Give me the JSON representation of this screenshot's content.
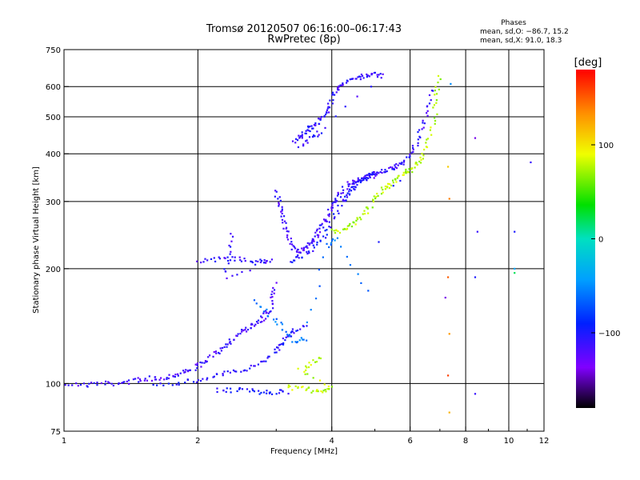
{
  "chart_data": {
    "type": "scatter",
    "title": "Tromsø 20120507 06:16:00–06:17:43",
    "subtitle": "RwPretec (8p)",
    "xlabel": "Frequency [MHz]",
    "ylabel": "Stationary phase Virtual Height [km]",
    "x_scale": "log",
    "y_scale": "log",
    "xlim": [
      1,
      12
    ],
    "ylim": [
      75,
      750
    ],
    "x_ticks": [
      1,
      2,
      4,
      6,
      8,
      10,
      12
    ],
    "y_ticks": [
      75,
      100,
      200,
      300,
      400,
      500,
      600,
      750
    ],
    "x_ticks_labels": [
      "1",
      "2",
      "4",
      "6",
      "8",
      "10",
      "12"
    ],
    "y_ticks_labels": [
      "75",
      "100",
      "200",
      "300",
      "400",
      "500",
      "600",
      "750"
    ],
    "x_grid": [
      2,
      4,
      6,
      8,
      10
    ],
    "y_grid": [
      100,
      200,
      300,
      400,
      500,
      600
    ],
    "grid": true,
    "stats": {
      "heading": "Phases",
      "line_o": "mean, sd,O: −86.7, 15.2",
      "line_x": "mean, sd,X: 91.0, 18.3"
    },
    "colorbar": {
      "label": "[deg]",
      "range": [
        -180,
        180
      ],
      "ticks": [
        100,
        0,
        -100
      ],
      "ticks_labels": [
        "100",
        "0",
        "−100"
      ]
    },
    "traces": [
      {
        "kind": "blue-o-low",
        "phase": -115,
        "points": [
          [
            1.0,
            100
          ],
          [
            1.1,
            99
          ],
          [
            1.2,
            100
          ],
          [
            1.3,
            100
          ],
          [
            1.4,
            101
          ],
          [
            1.5,
            103
          ],
          [
            1.6,
            103
          ],
          [
            1.7,
            104
          ],
          [
            1.8,
            106
          ],
          [
            1.9,
            108
          ],
          [
            2.0,
            111
          ],
          [
            2.1,
            115
          ],
          [
            2.2,
            120
          ],
          [
            2.3,
            126
          ],
          [
            2.4,
            131
          ],
          [
            2.5,
            136
          ],
          [
            2.6,
            140
          ],
          [
            2.7,
            144
          ],
          [
            2.8,
            149
          ],
          [
            2.9,
            155
          ],
          [
            2.95,
            168
          ],
          [
            3.0,
            186
          ]
        ]
      },
      {
        "kind": "blue-o-low-2",
        "phase": -105,
        "points": [
          [
            1.6,
            100
          ],
          [
            1.8,
            100
          ],
          [
            2.0,
            102
          ],
          [
            2.2,
            105
          ],
          [
            2.4,
            107
          ],
          [
            2.6,
            110
          ],
          [
            2.8,
            115
          ],
          [
            3.0,
            122
          ],
          [
            3.1,
            128
          ],
          [
            3.2,
            134
          ],
          [
            3.3,
            138
          ],
          [
            3.5,
            142
          ]
        ]
      },
      {
        "kind": "blue-ground",
        "phase": -100,
        "points": [
          [
            2.2,
            96
          ],
          [
            2.4,
            96
          ],
          [
            2.6,
            96
          ],
          [
            2.8,
            95
          ],
          [
            3.0,
            95
          ],
          [
            3.2,
            95
          ]
        ]
      },
      {
        "kind": "yellow-x-low",
        "phase": 80,
        "points": [
          [
            3.2,
            98
          ],
          [
            3.4,
            97
          ],
          [
            3.6,
            96
          ],
          [
            3.8,
            96
          ],
          [
            4.0,
            97
          ],
          [
            3.4,
            108
          ],
          [
            3.6,
            112
          ],
          [
            3.8,
            118
          ]
        ]
      },
      {
        "kind": "blue-e-cusp",
        "phase": -110,
        "points": [
          [
            2.0,
            210
          ],
          [
            2.2,
            212
          ],
          [
            2.4,
            212
          ],
          [
            2.6,
            210
          ],
          [
            2.8,
            209
          ],
          [
            2.9,
            209
          ],
          [
            2.3,
            190
          ],
          [
            2.35,
            220
          ],
          [
            2.4,
            248
          ]
        ]
      },
      {
        "kind": "blue-f1",
        "phase": -115,
        "points": [
          [
            3.0,
            320
          ],
          [
            3.05,
            295
          ],
          [
            3.1,
            275
          ],
          [
            3.15,
            255
          ],
          [
            3.2,
            238
          ],
          [
            3.3,
            225
          ],
          [
            3.4,
            222
          ],
          [
            3.5,
            228
          ],
          [
            3.6,
            236
          ],
          [
            3.7,
            246
          ],
          [
            3.8,
            258
          ],
          [
            3.9,
            272
          ],
          [
            4.0,
            288
          ],
          [
            4.1,
            305
          ],
          [
            4.2,
            320
          ],
          [
            4.4,
            335
          ],
          [
            4.6,
            340
          ],
          [
            4.8,
            345
          ],
          [
            5.0,
            350
          ]
        ]
      },
      {
        "kind": "blue-f1-2",
        "phase": -100,
        "points": [
          [
            3.2,
            210
          ],
          [
            3.4,
            215
          ],
          [
            3.6,
            222
          ],
          [
            3.8,
            240
          ],
          [
            4.0,
            265
          ],
          [
            4.2,
            295
          ],
          [
            4.4,
            320
          ],
          [
            4.6,
            338
          ],
          [
            4.8,
            350
          ],
          [
            5.0,
            360
          ]
        ]
      },
      {
        "kind": "blue-f2-o",
        "phase": -110,
        "points": [
          [
            4.2,
            300
          ],
          [
            4.4,
            320
          ],
          [
            4.6,
            340
          ],
          [
            4.8,
            350
          ],
          [
            5.0,
            355
          ],
          [
            5.2,
            360
          ],
          [
            5.4,
            365
          ],
          [
            5.6,
            370
          ],
          [
            5.8,
            380
          ],
          [
            6.0,
            400
          ],
          [
            6.2,
            430
          ],
          [
            6.4,
            470
          ],
          [
            6.6,
            530
          ],
          [
            6.7,
            600
          ]
        ]
      },
      {
        "kind": "yellow-x-f",
        "phase": 75,
        "points": [
          [
            4.0,
            250
          ],
          [
            4.2,
            252
          ],
          [
            4.4,
            258
          ],
          [
            4.6,
            268
          ],
          [
            4.8,
            285
          ],
          [
            5.0,
            305
          ],
          [
            5.2,
            320
          ],
          [
            5.4,
            333
          ],
          [
            5.6,
            345
          ],
          [
            5.8,
            355
          ],
          [
            6.0,
            362
          ],
          [
            6.2,
            372
          ],
          [
            6.4,
            390
          ],
          [
            6.6,
            430
          ],
          [
            6.8,
            500
          ],
          [
            6.9,
            580
          ],
          [
            6.95,
            640
          ]
        ]
      },
      {
        "kind": "blue-spread-top",
        "phase": -110,
        "points": [
          [
            3.3,
            430
          ],
          [
            3.4,
            445
          ],
          [
            3.5,
            460
          ],
          [
            3.6,
            470
          ],
          [
            3.7,
            480
          ],
          [
            3.8,
            500
          ],
          [
            3.9,
            520
          ],
          [
            4.0,
            560
          ],
          [
            4.1,
            590
          ],
          [
            4.2,
            605
          ],
          [
            4.4,
            625
          ],
          [
            4.6,
            635
          ],
          [
            4.8,
            640
          ],
          [
            5.0,
            645
          ],
          [
            5.2,
            640
          ],
          [
            3.4,
            420
          ],
          [
            3.6,
            440
          ],
          [
            3.8,
            460
          ]
        ]
      },
      {
        "kind": "cyan-scatter",
        "phase": -60,
        "points": [
          [
            2.7,
            165
          ],
          [
            2.9,
            150
          ],
          [
            3.1,
            140
          ],
          [
            3.3,
            128
          ],
          [
            3.5,
            132
          ],
          [
            3.9,
            230
          ],
          [
            4.1,
            240
          ],
          [
            4.9,
            165
          ]
        ]
      }
    ],
    "sparse_points": [
      {
        "x": 7.4,
        "y": 610,
        "phase": -50
      },
      {
        "x": 7.3,
        "y": 370,
        "phase": 110
      },
      {
        "x": 7.35,
        "y": 305,
        "phase": 140
      },
      {
        "x": 7.3,
        "y": 190,
        "phase": 150
      },
      {
        "x": 7.2,
        "y": 168,
        "phase": -140
      },
      {
        "x": 7.35,
        "y": 135,
        "phase": 130
      },
      {
        "x": 7.3,
        "y": 105,
        "phase": 160
      },
      {
        "x": 7.35,
        "y": 84,
        "phase": 120
      },
      {
        "x": 8.4,
        "y": 440,
        "phase": -140
      },
      {
        "x": 8.5,
        "y": 250,
        "phase": -110
      },
      {
        "x": 8.4,
        "y": 190,
        "phase": -100
      },
      {
        "x": 8.4,
        "y": 94,
        "phase": -110
      },
      {
        "x": 10.3,
        "y": 250,
        "phase": -100
      },
      {
        "x": 10.3,
        "y": 200,
        "phase": -40
      },
      {
        "x": 10.3,
        "y": 195,
        "phase": 20
      },
      {
        "x": 11.2,
        "y": 380,
        "phase": -110
      },
      {
        "x": 5.7,
        "y": 340,
        "phase": -100
      },
      {
        "x": 5.5,
        "y": 330,
        "phase": -90
      },
      {
        "x": 5.1,
        "y": 235,
        "phase": -100
      }
    ]
  }
}
